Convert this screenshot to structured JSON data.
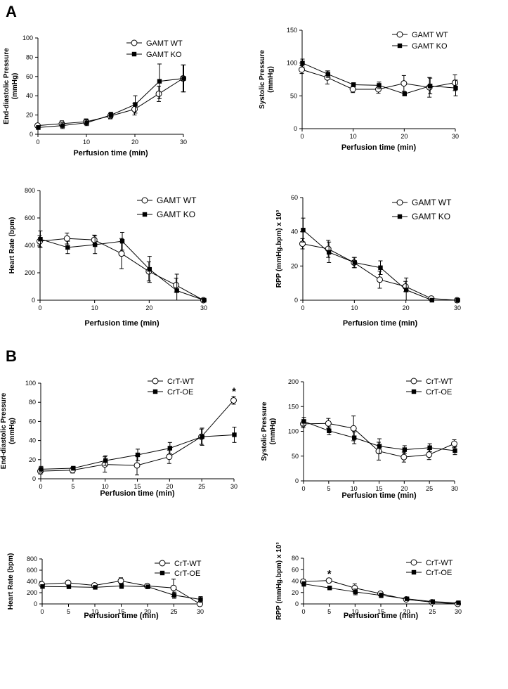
{
  "panel_labels": [
    "A",
    "B"
  ],
  "chart_data": [
    {
      "type": "line",
      "panel": "A",
      "title": "",
      "ylabel": "End-diastolic Pressure (mmHg)",
      "ylabel_lines": [
        "End-diastolic Pressure",
        "(mmHg)"
      ],
      "xlabel": "Perfusion time (min)",
      "xlim": [
        0,
        30
      ],
      "ylim": [
        0,
        100
      ],
      "xticks": [
        0,
        10,
        20,
        30
      ],
      "yticks": [
        0,
        20,
        40,
        60,
        80,
        100
      ],
      "legend": "top-right",
      "series": [
        {
          "name": "GAMT WT",
          "marker": "open-circle",
          "x": [
            0,
            5,
            10,
            15,
            20,
            25,
            30
          ],
          "values": [
            9,
            11,
            13,
            19,
            26,
            42,
            58
          ],
          "err": [
            2,
            3,
            3,
            3,
            6,
            8,
            14
          ]
        },
        {
          "name": "GAMT KO",
          "marker": "filled-square",
          "x": [
            0,
            5,
            10,
            15,
            20,
            25,
            30
          ],
          "values": [
            7,
            9,
            12,
            20,
            31,
            55,
            58
          ],
          "err": [
            2,
            3,
            3,
            3,
            9,
            18,
            14
          ]
        }
      ]
    },
    {
      "type": "line",
      "panel": "A",
      "title": "",
      "ylabel": "Systolic Pressure (mmHg)",
      "ylabel_lines": [
        "Systolic Pressure",
        "(mmHg)"
      ],
      "xlabel": "Perfusion time (min)",
      "xlim": [
        0,
        30
      ],
      "ylim": [
        0,
        150
      ],
      "xticks": [
        0,
        10,
        20,
        30
      ],
      "yticks": [
        0,
        50,
        100,
        150
      ],
      "legend": "top-right",
      "series": [
        {
          "name": "GAMT WT",
          "marker": "open-circle",
          "x": [
            0,
            5,
            10,
            15,
            20,
            25,
            30
          ],
          "values": [
            90,
            78,
            60,
            60,
            69,
            63,
            70
          ],
          "err": [
            6,
            10,
            5,
            6,
            12,
            15,
            12
          ]
        },
        {
          "name": "GAMT KO",
          "marker": "filled-square",
          "x": [
            0,
            5,
            10,
            15,
            20,
            25,
            30
          ],
          "values": [
            100,
            83,
            67,
            66,
            53,
            65,
            62
          ],
          "err": [
            6,
            5,
            3,
            5,
            3,
            12,
            12
          ]
        }
      ]
    },
    {
      "type": "line",
      "panel": "A",
      "title": "",
      "ylabel": "Heart Rate (bpm)",
      "ylabel_lines": [
        "Heart Rate (bpm)"
      ],
      "xlabel": "Perfusion time (min)",
      "xlim": [
        0,
        30
      ],
      "ylim": [
        0,
        800
      ],
      "xticks": [
        0,
        10,
        20,
        30
      ],
      "yticks": [
        0,
        200,
        400,
        600,
        800
      ],
      "legend": "top-right",
      "series": [
        {
          "name": "GAMT WT",
          "marker": "open-circle",
          "x": [
            0,
            5,
            10,
            15,
            20,
            25,
            30
          ],
          "values": [
            430,
            450,
            440,
            340,
            210,
            110,
            0
          ],
          "err": [
            40,
            40,
            35,
            110,
            70,
            50,
            0
          ]
        },
        {
          "name": "GAMT KO",
          "marker": "filled-square",
          "x": [
            0,
            5,
            10,
            15,
            20,
            25,
            30
          ],
          "values": [
            445,
            385,
            405,
            430,
            225,
            70,
            0
          ],
          "err": [
            60,
            45,
            65,
            65,
            95,
            120,
            0
          ]
        }
      ]
    },
    {
      "type": "line",
      "panel": "A",
      "title": "",
      "ylabel": "RPP (mmHg.bpm) x 10³",
      "ylabel_lines": [
        "RPP (mmHg.bpm) x 10³"
      ],
      "xlabel": "Perfusion time (min)",
      "xlim": [
        0,
        30
      ],
      "ylim": [
        0,
        60
      ],
      "xticks": [
        0,
        10,
        20,
        30
      ],
      "yticks": [
        0,
        20,
        40,
        60
      ],
      "legend": "top-right",
      "series": [
        {
          "name": "GAMT WT",
          "marker": "open-circle",
          "x": [
            0,
            5,
            10,
            15,
            20,
            25,
            30
          ],
          "values": [
            33,
            30,
            22,
            12,
            8,
            1,
            0
          ],
          "err": [
            3,
            5,
            3,
            5,
            3,
            1,
            0
          ]
        },
        {
          "name": "GAMT KO",
          "marker": "filled-square",
          "x": [
            0,
            5,
            10,
            15,
            20,
            25,
            30
          ],
          "values": [
            41,
            28,
            22,
            19,
            6,
            0,
            0
          ],
          "err": [
            7,
            6,
            3,
            4,
            7,
            0,
            0
          ]
        }
      ]
    },
    {
      "type": "line",
      "panel": "B",
      "title": "",
      "ylabel": "End-diastolic Pressure (mmHg)",
      "ylabel_lines": [
        "End-diastolic Pressure",
        "(mmHg)"
      ],
      "xlabel": "Perfusion time (min)",
      "xlim": [
        0,
        30
      ],
      "ylim": [
        0,
        100
      ],
      "xticks": [
        0,
        5,
        10,
        15,
        20,
        25,
        30
      ],
      "yticks": [
        0,
        20,
        40,
        60,
        80,
        100
      ],
      "legend": "top-right",
      "annotations": [
        {
          "text": "*",
          "x": 30,
          "y": 88
        }
      ],
      "series": [
        {
          "name": "CrT-WT",
          "marker": "open-circle",
          "x": [
            0,
            5,
            10,
            15,
            20,
            25,
            30
          ],
          "values": [
            8,
            9,
            15,
            14,
            23,
            44,
            82
          ],
          "err": [
            3,
            3,
            8,
            10,
            7,
            8,
            4
          ]
        },
        {
          "name": "CrT-OE",
          "marker": "filled-square",
          "x": [
            0,
            5,
            10,
            15,
            20,
            25,
            30
          ],
          "values": [
            10,
            11,
            19,
            25,
            32,
            44,
            46
          ],
          "err": [
            3,
            2,
            5,
            6,
            6,
            9,
            8
          ]
        }
      ]
    },
    {
      "type": "line",
      "panel": "B",
      "title": "",
      "ylabel": "Systolic Pressure (mmHg)",
      "ylabel_lines": [
        "Systolic Pressure",
        "(mmHg)"
      ],
      "xlabel": "Perfusion time (min)",
      "xlim": [
        0,
        30
      ],
      "ylim": [
        0,
        200
      ],
      "xticks": [
        0,
        5,
        10,
        15,
        20,
        25,
        30
      ],
      "yticks": [
        0,
        50,
        100,
        150,
        200
      ],
      "legend": "top-right",
      "series": [
        {
          "name": "CrT-WT",
          "marker": "open-circle",
          "x": [
            0,
            5,
            10,
            15,
            20,
            25,
            30
          ],
          "values": [
            115,
            116,
            106,
            60,
            48,
            53,
            75
          ],
          "err": [
            8,
            10,
            25,
            18,
            10,
            10,
            8
          ]
        },
        {
          "name": "CrT-OE",
          "marker": "filled-square",
          "x": [
            0,
            5,
            10,
            15,
            20,
            25,
            30
          ],
          "values": [
            120,
            101,
            87,
            70,
            63,
            67,
            61
          ],
          "err": [
            8,
            8,
            12,
            15,
            8,
            8,
            8
          ]
        }
      ]
    },
    {
      "type": "line",
      "panel": "B",
      "title": "",
      "ylabel": "Heart Rate (bpm)",
      "ylabel_lines": [
        "Heart Rate (bpm)"
      ],
      "xlabel": "Perfusion time (min)",
      "xlim": [
        0,
        30
      ],
      "ylim": [
        0,
        800
      ],
      "xticks": [
        0,
        5,
        10,
        15,
        20,
        25,
        30
      ],
      "yticks": [
        0,
        200,
        400,
        600,
        800
      ],
      "legend": "top-right",
      "series": [
        {
          "name": "CrT-WT",
          "marker": "open-circle",
          "x": [
            0,
            5,
            10,
            15,
            20,
            25,
            30
          ],
          "values": [
            350,
            375,
            330,
            410,
            320,
            285,
            0
          ],
          "err": [
            30,
            40,
            30,
            55,
            20,
            155,
            0
          ]
        },
        {
          "name": "CrT-OE",
          "marker": "filled-square",
          "x": [
            0,
            5,
            10,
            15,
            20,
            25,
            30
          ],
          "values": [
            310,
            305,
            295,
            320,
            305,
            155,
            80
          ],
          "err": [
            20,
            15,
            20,
            45,
            20,
            55,
            50
          ]
        }
      ]
    },
    {
      "type": "line",
      "panel": "B",
      "title": "",
      "ylabel": "RPP (mmHg.bpm) x 10³",
      "ylabel_lines": [
        "RPP (mmHg.bpm) x 10³"
      ],
      "xlabel": "Perfusion time (min)",
      "xlim": [
        0,
        30
      ],
      "ylim": [
        0,
        80
      ],
      "xticks": [
        0,
        5,
        10,
        15,
        20,
        25,
        30
      ],
      "yticks": [
        0,
        20,
        40,
        60,
        80
      ],
      "legend": "top-right",
      "annotations": [
        {
          "text": "*",
          "x": 5,
          "y": 47
        }
      ],
      "series": [
        {
          "name": "CrT-WT",
          "marker": "open-circle",
          "x": [
            0,
            5,
            10,
            15,
            20,
            25,
            30
          ],
          "values": [
            39,
            41,
            28,
            18,
            8,
            3,
            0
          ],
          "err": [
            4,
            4,
            7,
            3,
            2,
            1,
            1
          ]
        },
        {
          "name": "CrT-OE",
          "marker": "filled-square",
          "x": [
            0,
            5,
            10,
            15,
            20,
            25,
            30
          ],
          "values": [
            35,
            28,
            21,
            15,
            9,
            4,
            2
          ],
          "err": [
            4,
            3,
            5,
            4,
            2,
            1,
            1
          ]
        }
      ]
    }
  ]
}
